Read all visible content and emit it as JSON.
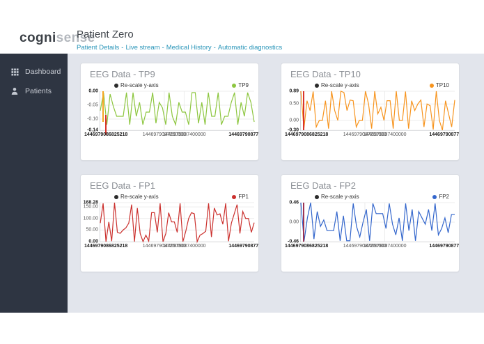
{
  "logo": {
    "bold": "cogni",
    "light": "sense"
  },
  "header": {
    "title": "Patient Zero",
    "nav_links": [
      "Patient Details",
      "Live stream",
      "Medical History",
      "Automatic diagnostics"
    ],
    "separator": "-"
  },
  "sidebar": {
    "items": [
      {
        "icon": "grid-icon",
        "label": "Dashboard"
      },
      {
        "icon": "person-icon",
        "label": "Patients"
      }
    ]
  },
  "colors": {
    "sidebar_bg": "#2e3542",
    "content_bg": "#e2e5ec",
    "link": "#2794b8",
    "rescale_dot": "#2b2b2b",
    "tp9": "#8dc63f",
    "tp10": "#f7941e",
    "fp1": "#cb302d",
    "fp2": "#3366cc"
  },
  "chart_data": [
    {
      "id": "tp9",
      "type": "line",
      "title": "EEG Data - TP9",
      "legend_rescale": "Re-scale y-axis",
      "series": {
        "name": "TP9",
        "color": "#8dc63f"
      },
      "ylim": [
        -0.14,
        0
      ],
      "yticks": [
        {
          "label": "0.00",
          "value": 0,
          "bold": true
        },
        {
          "label": "-0.05",
          "value": -0.05,
          "bold": false
        },
        {
          "label": "-0.10",
          "value": -0.1,
          "bold": false
        },
        {
          "label": "-0.14",
          "value": -0.14,
          "bold": true
        }
      ],
      "xticks": [
        {
          "label": "1446979086825218",
          "align": "left",
          "bold": true
        },
        {
          "label": "1446979087200000",
          "align": "center",
          "pos": 0.416,
          "bold": false
        },
        {
          "label": "1446979087400000",
          "align": "center",
          "pos": 0.545,
          "bold": false
        },
        {
          "label": "1446979087782",
          "align": "right",
          "bold": true
        }
      ],
      "vgrid": [
        0.416,
        0.545
      ],
      "values": [
        -0.07,
        -0.005,
        -0.12,
        -0.01,
        -0.055,
        -0.09,
        -0.09,
        -0.09,
        -0.005,
        -0.12,
        -0.005,
        -0.09,
        -0.04,
        -0.12,
        -0.075,
        -0.075,
        -0.005,
        -0.115,
        -0.04,
        -0.06,
        -0.12,
        -0.005,
        -0.09,
        -0.12,
        -0.04,
        -0.075,
        -0.075,
        -0.12,
        -0.005,
        -0.005,
        -0.115,
        -0.04,
        -0.12,
        -0.005,
        -0.09,
        -0.09,
        -0.005,
        -0.12,
        -0.09,
        -0.09,
        -0.04,
        -0.005,
        -0.12,
        -0.04,
        -0.09,
        -0.005,
        -0.04,
        -0.11
      ],
      "accents": [
        {
          "color": "#f5a623",
          "x": 0.012,
          "v1": 0,
          "v2": -0.11,
          "w": 2
        },
        {
          "color": "#d9342b",
          "x": 0.032,
          "v1": -0.085,
          "v2": -0.158,
          "w": 1.5
        }
      ]
    },
    {
      "id": "tp10",
      "type": "line",
      "title": "EEG Data - TP10",
      "legend_rescale": "Re-scale y-axis",
      "series": {
        "name": "TP10",
        "color": "#f7941e"
      },
      "ylim": [
        -0.3,
        0.89
      ],
      "yticks": [
        {
          "label": "0.89",
          "value": 0.89,
          "bold": true
        },
        {
          "label": "0.50",
          "value": 0.5,
          "bold": false
        },
        {
          "label": "0.00",
          "value": 0,
          "bold": false
        },
        {
          "label": "-0.30",
          "value": -0.3,
          "bold": true
        }
      ],
      "xticks": [
        {
          "label": "1446979086825218",
          "align": "left",
          "bold": true
        },
        {
          "label": "1446979087200000",
          "align": "center",
          "pos": 0.416,
          "bold": false
        },
        {
          "label": "1446979087400000",
          "align": "center",
          "pos": 0.545,
          "bold": false
        },
        {
          "label": "1446979087782",
          "align": "right",
          "bold": true
        }
      ],
      "vgrid": [
        0.416,
        0.545
      ],
      "values": [
        0.89,
        -0.25,
        0.6,
        0.3,
        0.88,
        -0.2,
        0.0,
        0.0,
        0.6,
        -0.25,
        0.89,
        0.3,
        0.0,
        0.89,
        0.85,
        0.3,
        0.62,
        0.6,
        -0.2,
        0.0,
        0.0,
        0.89,
        0.5,
        -0.25,
        0.89,
        0.2,
        0.4,
        0.0,
        0.6,
        0.6,
        -0.25,
        0.89,
        0.0,
        0.0,
        0.88,
        -0.25,
        0.6,
        0.3,
        0.5,
        0.62,
        -0.2,
        0.5,
        0.45,
        -0.28,
        0.89,
        0.0,
        -0.3,
        0.6,
        0.2,
        -0.2,
        0.62
      ],
      "accents": [
        {
          "color": "#d9342b",
          "x": 0.012,
          "v1": 0.89,
          "v2": -0.3,
          "w": 2
        }
      ]
    },
    {
      "id": "fp1",
      "type": "line",
      "title": "EEG Data - FP1",
      "legend_rescale": "Re-scale y-axis",
      "series": {
        "name": "FP1",
        "color": "#cb302d"
      },
      "ylim": [
        0,
        168.28
      ],
      "yticks": [
        {
          "label": "168.28",
          "value": 168.28,
          "bold": true
        },
        {
          "label": "150.00",
          "value": 150,
          "bold": false
        },
        {
          "label": "100.00",
          "value": 100,
          "bold": false
        },
        {
          "label": "50.00",
          "value": 50,
          "bold": false
        },
        {
          "label": "0.00",
          "value": 0,
          "bold": true
        }
      ],
      "xticks": [
        {
          "label": "1446979086825218",
          "align": "left",
          "bold": true
        },
        {
          "label": "1446979087200000",
          "align": "center",
          "pos": 0.416,
          "bold": false
        },
        {
          "label": "1446979087400000",
          "align": "center",
          "pos": 0.545,
          "bold": false
        },
        {
          "label": "1446979087782",
          "align": "right",
          "bold": true
        }
      ],
      "vgrid": [
        0.416,
        0.545
      ],
      "values": [
        80,
        165,
        0,
        85,
        2,
        168,
        40,
        36,
        50,
        60,
        80,
        160,
        0,
        145,
        35,
        0,
        28,
        2,
        125,
        125,
        40,
        165,
        0,
        35,
        125,
        85,
        85,
        40,
        165,
        0,
        45,
        100,
        125,
        120,
        0,
        28,
        35,
        45,
        165,
        20,
        145,
        115,
        120,
        75,
        165,
        2,
        80,
        120,
        160,
        35,
        130,
        100,
        100,
        40,
        82
      ],
      "accents": []
    },
    {
      "id": "fp2",
      "type": "line",
      "title": "EEG Data - FP2",
      "legend_rescale": "Re-scale y-axis",
      "series": {
        "name": "FP2",
        "color": "#3366cc"
      },
      "ylim": [
        -0.46,
        0.46
      ],
      "yticks": [
        {
          "label": "0.46",
          "value": 0.46,
          "bold": true
        },
        {
          "label": "0.00",
          "value": 0,
          "bold": false
        },
        {
          "label": "-0.46",
          "value": -0.46,
          "bold": true
        }
      ],
      "xticks": [
        {
          "label": "1446979086825218",
          "align": "left",
          "bold": true
        },
        {
          "label": "1446979087200000",
          "align": "center",
          "pos": 0.416,
          "bold": false
        },
        {
          "label": "1446979087400000",
          "align": "center",
          "pos": 0.545,
          "bold": false
        },
        {
          "label": "1446979087782",
          "align": "right",
          "bold": true
        }
      ],
      "vgrid": [
        0.416,
        0.545
      ],
      "values": [
        0.46,
        -0.44,
        0.1,
        0.46,
        -0.4,
        0.25,
        -0.1,
        0.05,
        -0.2,
        -0.2,
        -0.2,
        0.25,
        -0.44,
        0.15,
        -0.44,
        -0.44,
        0.44,
        -0.1,
        -0.35,
        0.0,
        0.3,
        -0.44,
        0.44,
        0.2,
        0.2,
        0.2,
        -0.15,
        0.44,
        -0.05,
        -0.3,
        0.1,
        -0.44,
        0.44,
        -0.2,
        0.3,
        -0.44,
        0.25,
        0.1,
        -0.05,
        0.3,
        -0.2,
        0.44,
        -0.3,
        -0.15,
        0.1,
        -0.25,
        0.18,
        0.18
      ],
      "accents": [
        {
          "color": "#9c3353",
          "x": 0.012,
          "v1": 0.46,
          "v2": -0.46,
          "w": 2.5
        }
      ]
    }
  ]
}
